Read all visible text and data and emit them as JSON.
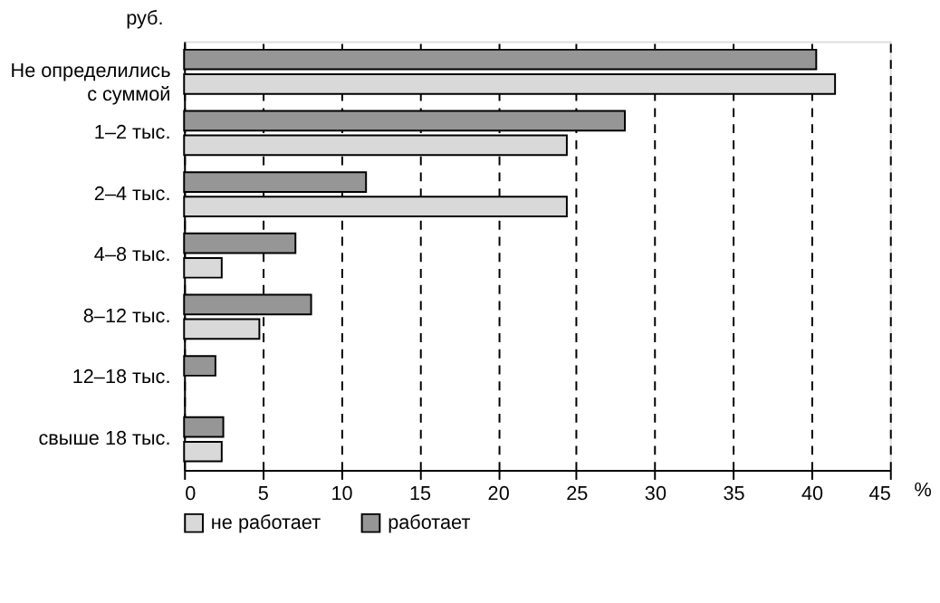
{
  "chart_data": {
    "type": "bar",
    "orientation": "horizontal",
    "ylabel": "руб.",
    "xlabel": "%",
    "categories": [
      "Не определились с суммой",
      "1–2 тыс.",
      "2–4 тыс.",
      "4–8 тыс.",
      "8–12 тыс.",
      "12–18 тыс.",
      "свыше 18 тыс."
    ],
    "series": [
      {
        "name": "не работает",
        "color": "#d9d9d9",
        "values": [
          41.5,
          24.4,
          24.4,
          2.4,
          4.8,
          null,
          2.4
        ]
      },
      {
        "name": "работает",
        "color": "#969696",
        "values": [
          40.3,
          28.1,
          11.6,
          7.1,
          8.1,
          2.0,
          2.5
        ]
      }
    ],
    "xlim": [
      0,
      45
    ],
    "xticks": [
      0,
      5,
      10,
      15,
      20,
      25,
      30,
      35,
      40,
      45
    ],
    "grid": "x",
    "legend": "bottom"
  }
}
